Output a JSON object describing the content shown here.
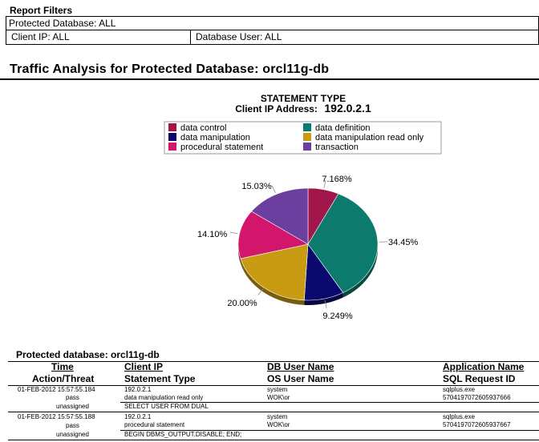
{
  "filters": {
    "title": "Report Filters",
    "protected_database": "Protected Database: ALL",
    "client_ip": "Client IP: ALL",
    "database_user": "Database User: ALL"
  },
  "report": {
    "title": "Traffic Analysis for Protected Database: orcl11g-db"
  },
  "chart_data": {
    "type": "pie",
    "title": "STATEMENT TYPE",
    "subtitle_label": "Client IP Address:",
    "subtitle_value": "192.0.2.1",
    "legend": [
      {
        "name": "data control",
        "color": "#a0154a"
      },
      {
        "name": "data definition",
        "color": "#0d7a6e"
      },
      {
        "name": "data manipulation",
        "color": "#0a0a6e"
      },
      {
        "name": "data manipulation read only",
        "color": "#c99b12"
      },
      {
        "name": "procedural statement",
        "color": "#d1166b"
      },
      {
        "name": "transaction",
        "color": "#6a3fa0"
      }
    ],
    "slices": [
      {
        "name": "data control",
        "value": 7.168,
        "label": "7.168%",
        "color": "#a0154a"
      },
      {
        "name": "data definition",
        "value": 34.45,
        "label": "34.45%",
        "color": "#0d7a6e"
      },
      {
        "name": "data manipulation",
        "value": 9.249,
        "label": "9.249%",
        "color": "#0a0a6e"
      },
      {
        "name": "data manipulation read only",
        "value": 20.0,
        "label": "20.00%",
        "color": "#c99b12"
      },
      {
        "name": "procedural statement",
        "value": 14.1,
        "label": "14.10%",
        "color": "#d1166b"
      },
      {
        "name": "transaction",
        "value": 15.03,
        "label": "15.03%",
        "color": "#6a3fa0"
      }
    ]
  },
  "table": {
    "caption": "Protected database: orcl11g-db",
    "headers": {
      "time": "Time",
      "action_threat": "Action/Threat",
      "client_ip": "Client IP",
      "statement_type": "Statement Type",
      "db_user_name": "DB User Name",
      "os_user_name": "OS User Name",
      "application_name": "Application Name",
      "sql_request_id": "SQL Request ID"
    },
    "rows": [
      {
        "time": "01-FEB-2012 15:57:55.184",
        "action": "pass",
        "threat": "unassigned",
        "client_ip": "192.0.2.1",
        "statement_type": "data manipulation read only",
        "db_user": "system",
        "os_user": "WOK\\or",
        "application": "sqlplus.exe",
        "request_id": "5704197072605937666",
        "sql": "SELECT USER FROM DUAL"
      },
      {
        "time": "01-FEB-2012 15:57:55.188",
        "action": "pass",
        "threat": "unassigned",
        "client_ip": "192.0.2.1",
        "statement_type": "procedural statement",
        "db_user": "system",
        "os_user": "WOK\\or",
        "application": "sqlplus.exe",
        "request_id": "5704197072605937667",
        "sql": "BEGIN DBMS_OUTPUT.DISABLE; END;"
      }
    ]
  }
}
